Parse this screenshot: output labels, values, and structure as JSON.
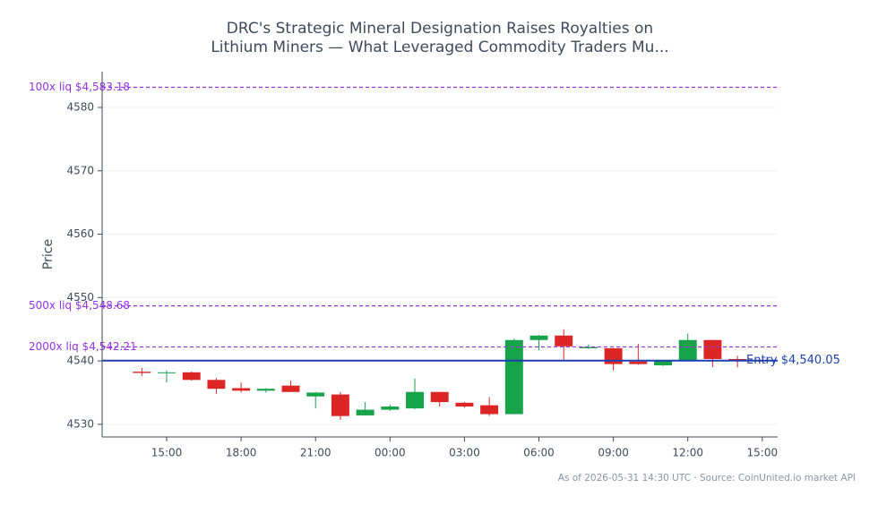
{
  "chart_data": {
    "type": "candlestick",
    "title": [
      "DRC's Strategic Mineral Designation Raises Royalties on",
      "Lithium Miners — What Leveraged Commodity Traders Mu..."
    ],
    "y_label": "Price",
    "footnote": "As of 2026-05-31 14:30 UTC · Source: CoinUnited.io market API",
    "x": [
      -10,
      -9,
      -8,
      -7,
      -6,
      -5,
      -4,
      -3,
      -2,
      -1,
      0,
      1,
      2,
      3,
      4,
      5,
      6,
      7,
      8,
      9,
      10,
      11,
      12,
      13,
      14
    ],
    "open": [
      4538.3,
      4538.1,
      4538.2,
      4537.0,
      4535.7,
      4535.3,
      4536.1,
      4534.4,
      4534.7,
      4531.4,
      4532.3,
      4532.5,
      4535.1,
      4533.4,
      4533.0,
      4531.6,
      4543.3,
      4544.0,
      4542.0,
      4542.0,
      4539.9,
      4539.3,
      4540.0,
      4543.3,
      4540.3
    ],
    "high": [
      4538.9,
      4538.5,
      4538.3,
      4537.3,
      4536.6,
      4535.7,
      4536.9,
      4535.1,
      4535.1,
      4533.5,
      4533.1,
      4537.2,
      4535.1,
      4533.5,
      4534.3,
      4543.5,
      4544.1,
      4545.0,
      4542.6,
      4542.0,
      4542.7,
      4540.1,
      4544.3,
      4543.3,
      4540.8
    ],
    "low": [
      4537.6,
      4536.6,
      4536.9,
      4534.8,
      4535.0,
      4535.0,
      4535.1,
      4532.5,
      4530.7,
      4531.4,
      4532.1,
      4532.4,
      4532.8,
      4532.6,
      4531.3,
      4531.6,
      4541.7,
      4540.0,
      4541.9,
      4538.5,
      4539.4,
      4539.2,
      4540.0,
      4539.0,
      4539.0
    ],
    "close": [
      4538.1,
      4538.2,
      4537.0,
      4535.6,
      4535.3,
      4535.6,
      4535.1,
      4535.0,
      4531.3,
      4532.3,
      4532.8,
      4535.1,
      4533.5,
      4532.8,
      4531.6,
      4543.3,
      4544.0,
      4542.3,
      4542.2,
      4539.5,
      4539.5,
      4540.0,
      4543.3,
      4540.3,
      4540.05
    ],
    "up_color": "#16a34a",
    "down_color": "#dc2626",
    "xlim": [
      -11.6,
      15.62
    ],
    "xticks": [
      {
        "value": -9,
        "label": "15:00"
      },
      {
        "value": -6,
        "label": "18:00"
      },
      {
        "value": -3,
        "label": "21:00"
      },
      {
        "value": 0,
        "label": "00:00"
      },
      {
        "value": 3,
        "label": "03:00"
      },
      {
        "value": 6,
        "label": "06:00"
      },
      {
        "value": 9,
        "label": "09:00"
      },
      {
        "value": 12,
        "label": "12:00"
      },
      {
        "value": 15,
        "label": "15:00"
      }
    ],
    "ylim": [
      4528.0,
      4585.65
    ],
    "yticks": [
      4530,
      4540,
      4550,
      4560,
      4570,
      4580
    ],
    "grid": true,
    "lines": [
      {
        "value": 4583.18,
        "label": "100x liq $4,583.18",
        "color": "#9333ea",
        "style": "dashed"
      },
      {
        "value": 4548.68,
        "label": "500x liq $4,548.68",
        "color": "#9333ea",
        "style": "dashed"
      },
      {
        "value": 4542.21,
        "label": "2000x liq $4,542.21",
        "color": "#9333ea",
        "style": "dashed"
      },
      {
        "value": 4540.05,
        "label": "Entry $4,540.05",
        "color": "#1e40af",
        "style": "solid"
      }
    ]
  }
}
